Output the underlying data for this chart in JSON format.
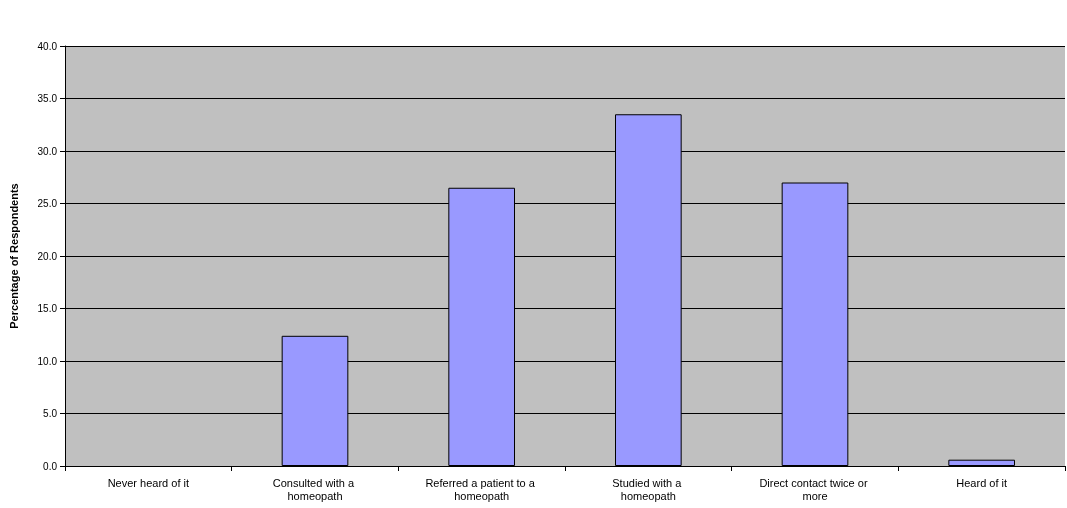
{
  "chart_data": {
    "type": "bar",
    "ylabel": "Percentage of Respondents",
    "categories": [
      "Never heard of it",
      "Consulted with a homeopath",
      "Referred a patient to a homeopath",
      "Studied with a homeopath",
      "Direct contact twice or more",
      "Heard of it"
    ],
    "values": [
      0,
      12.4,
      26.5,
      33.5,
      27.0,
      0.6
    ],
    "color": "#9999ff",
    "ylim": [
      0,
      40
    ],
    "yticks": [
      {
        "value": 0,
        "label": "0.0"
      },
      {
        "value": 5,
        "label": "5.0"
      },
      {
        "value": 10,
        "label": "10.0"
      },
      {
        "value": 15,
        "label": "15.0"
      },
      {
        "value": 20,
        "label": "20.0"
      },
      {
        "value": 25,
        "label": "25.0"
      },
      {
        "value": 30,
        "label": "30.0"
      },
      {
        "value": 35,
        "label": "35.0"
      },
      {
        "value": 40,
        "label": "40.0"
      }
    ],
    "grid": true
  }
}
